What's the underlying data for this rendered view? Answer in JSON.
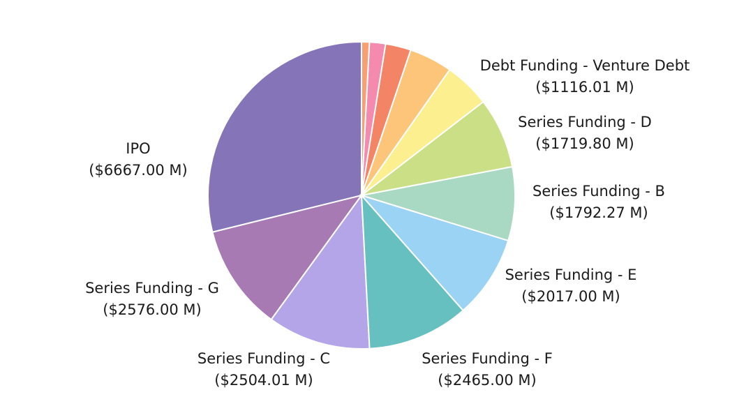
{
  "chart_data": {
    "type": "pie",
    "slices": [
      {
        "label": "IPO",
        "value": 6667.0,
        "value_text": "($6667.00 M)",
        "color": "#8574b8"
      },
      {
        "label": "Series Funding - G",
        "value": 2576.0,
        "value_text": "($2576.00 M)",
        "color": "#a77ab4"
      },
      {
        "label": "Series Funding - C",
        "value": 2504.01,
        "value_text": "($2504.01 M)",
        "color": "#b4a5e8"
      },
      {
        "label": "Series Funding - F",
        "value": 2465.0,
        "value_text": "($2465.00 M)",
        "color": "#66c0bf"
      },
      {
        "label": "Series Funding - E",
        "value": 2017.0,
        "value_text": "($2017.00 M)",
        "color": "#9bd3f5"
      },
      {
        "label": "Series Funding - B",
        "value": 1792.27,
        "value_text": "($1792.27 M)",
        "color": "#aad9c3"
      },
      {
        "label": "Series Funding - D",
        "value": 1719.8,
        "value_text": "($1719.80 M)",
        "color": "#cbe086"
      },
      {
        "label": "Debt Funding - Venture Debt",
        "value": 1116.01,
        "value_text": "($1116.01 M)",
        "color": "#fbef8f"
      },
      {
        "label": "",
        "value": 1050.0,
        "value_text": "",
        "color": "#fdc57a"
      },
      {
        "label": "",
        "value": 620.0,
        "value_text": "",
        "color": "#f38466"
      },
      {
        "label": "",
        "value": 390.0,
        "value_text": "",
        "color": "#f48aad"
      },
      {
        "label": "",
        "value": 190.0,
        "value_text": "",
        "color": "#f9a072"
      }
    ]
  }
}
